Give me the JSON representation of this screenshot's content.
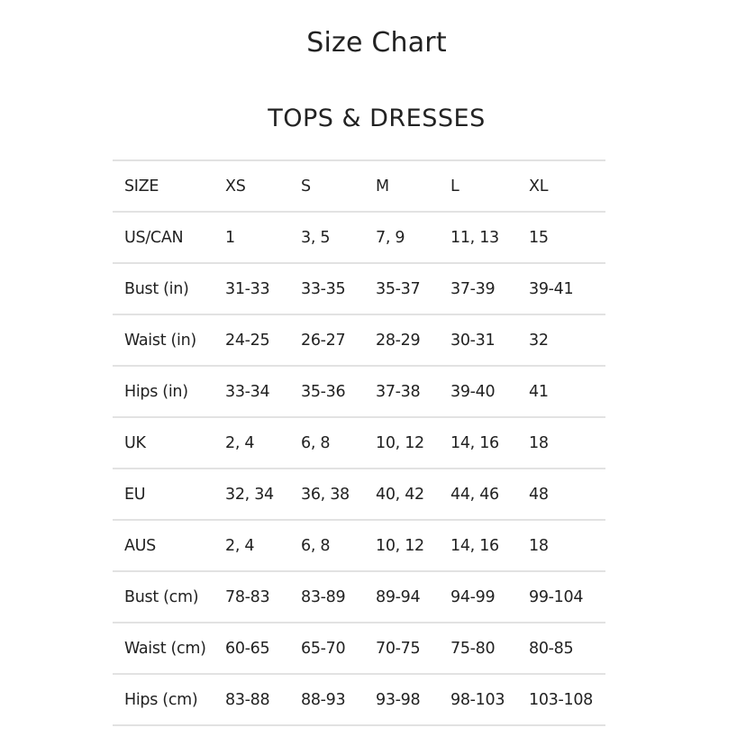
{
  "title": "Size Chart",
  "section": "TOPS & DRESSES",
  "table": {
    "rows": [
      [
        "SIZE",
        "XS",
        "S",
        "M",
        "L",
        "XL"
      ],
      [
        "US/CAN",
        "1",
        "3, 5",
        "7, 9",
        "11, 13",
        "15"
      ],
      [
        "Bust (in)",
        "31-33",
        "33-35",
        "35-37",
        "37-39",
        "39-41"
      ],
      [
        "Waist (in)",
        "24-25",
        "26-27",
        "28-29",
        "30-31",
        "32"
      ],
      [
        "Hips (in)",
        "33-34",
        "35-36",
        "37-38",
        "39-40",
        "41"
      ],
      [
        "UK",
        "2, 4",
        "6, 8",
        "10, 12",
        "14, 16",
        "18"
      ],
      [
        "EU",
        "32, 34",
        "36, 38",
        "40, 42",
        "44, 46",
        "48"
      ],
      [
        "AUS",
        "2, 4",
        "6, 8",
        "10, 12",
        "14, 16",
        "18"
      ],
      [
        "Bust (cm)",
        "78-83",
        "83-89",
        "89-94",
        "94-99",
        "99-104"
      ],
      [
        "Waist (cm)",
        "60-65",
        "65-70",
        "70-75",
        "75-80",
        "80-85"
      ],
      [
        "Hips (cm)",
        "83-88",
        "88-93",
        "93-98",
        "98-103",
        "103-108"
      ]
    ]
  }
}
